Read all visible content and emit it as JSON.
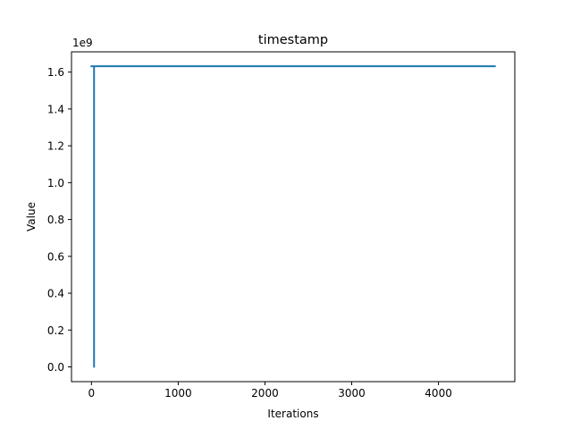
{
  "chart_data": {
    "type": "line",
    "title": "timestamp",
    "xlabel": "Iterations",
    "ylabel": "Value",
    "y_offset_label": "1e9",
    "xlim": [
      -230,
      4880
    ],
    "ylim": [
      -0.08,
      1.71
    ],
    "xticks": [
      0,
      1000,
      2000,
      3000,
      4000
    ],
    "xtick_labels": [
      "0",
      "1000",
      "2000",
      "3000",
      "4000"
    ],
    "yticks": [
      0.0,
      0.2,
      0.4,
      0.6,
      0.8,
      1.0,
      1.2,
      1.4,
      1.6
    ],
    "ytick_labels": [
      "0.0",
      "0.2",
      "0.4",
      "0.6",
      "0.8",
      "1.0",
      "1.2",
      "1.4",
      "1.6"
    ],
    "grid": false,
    "series": [
      {
        "color": "#1f77b4",
        "x": [
          0,
          30,
          30,
          30,
          4650
        ],
        "y": [
          1.632,
          1.632,
          0.0,
          1.632,
          1.632
        ]
      }
    ]
  }
}
